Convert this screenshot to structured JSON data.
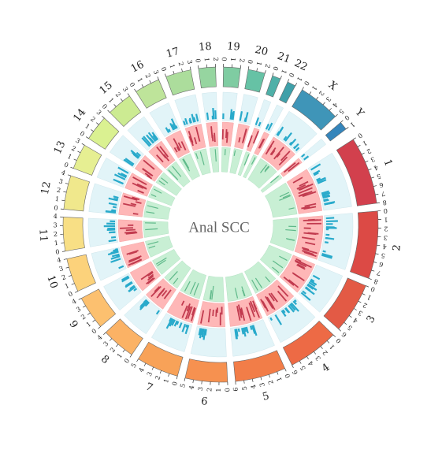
{
  "chart_data": {
    "type": "circos",
    "title": "Anal SCC",
    "chromosomes": [
      {
        "name": "1",
        "length": 8,
        "color": "#d2404d"
      },
      {
        "name": "2",
        "length": 8,
        "color": "#dc4a45"
      },
      {
        "name": "3",
        "length": 6,
        "color": "#e35a45"
      },
      {
        "name": "4",
        "length": 6,
        "color": "#ed6a45"
      },
      {
        "name": "5",
        "length": 6,
        "color": "#f27d48"
      },
      {
        "name": "6",
        "length": 5,
        "color": "#f69150"
      },
      {
        "name": "7",
        "length": 5,
        "color": "#f8a258"
      },
      {
        "name": "8",
        "length": 4,
        "color": "#fbb265"
      },
      {
        "name": "9",
        "length": 4,
        "color": "#fcc06f"
      },
      {
        "name": "10",
        "length": 4,
        "color": "#fcd27b"
      },
      {
        "name": "11",
        "length": 4,
        "color": "#f8df85"
      },
      {
        "name": "12",
        "length": 4,
        "color": "#f0e88c"
      },
      {
        "name": "13",
        "length": 3,
        "color": "#e6ef92"
      },
      {
        "name": "14",
        "length": 3,
        "color": "#daf191"
      },
      {
        "name": "15",
        "length": 3,
        "color": "#cceb92"
      },
      {
        "name": "16",
        "length": 3,
        "color": "#bee49a"
      },
      {
        "name": "17",
        "length": 3,
        "color": "#acdd9c"
      },
      {
        "name": "18",
        "length": 2,
        "color": "#96d5a0"
      },
      {
        "name": "19",
        "length": 2,
        "color": "#7fcca2"
      },
      {
        "name": "20",
        "length": 2,
        "color": "#66c2a5"
      },
      {
        "name": "21",
        "length": 1,
        "color": "#4fb0a8"
      },
      {
        "name": "22",
        "length": 1,
        "color": "#3fa0a9"
      },
      {
        "name": "X",
        "length": 5,
        "color": "#3f95b8"
      },
      {
        "name": "Y",
        "length": 1,
        "color": "#3585bb"
      }
    ],
    "track_colors": {
      "outer_band": "#e2f4f8",
      "outer_marks": "#29aacb",
      "middle_band": "#feb7b7",
      "middle_marks": "#c23b4f",
      "inner_band": "#c8efd4",
      "inner_marks": "#5fb98a"
    }
  }
}
